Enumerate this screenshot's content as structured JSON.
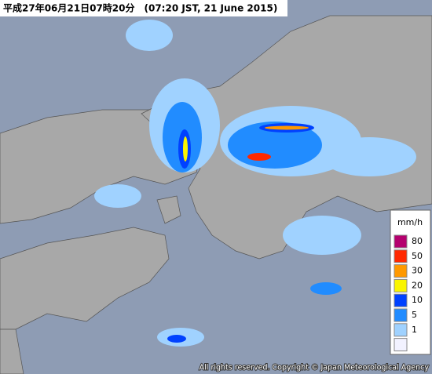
{
  "header": {
    "title": "平成27年06月21日07時20分　(07:20 JST, 21 June 2015)"
  },
  "legend": {
    "unit": "mm/h",
    "items": [
      {
        "value": 80,
        "color": "#b4006e"
      },
      {
        "value": 50,
        "color": "#ff2800"
      },
      {
        "value": 30,
        "color": "#ff9900"
      },
      {
        "value": 20,
        "color": "#faf500"
      },
      {
        "value": 10,
        "color": "#0041ff"
      },
      {
        "value": 5,
        "color": "#218cff"
      },
      {
        "value": 1,
        "color": "#a0d2ff"
      },
      {
        "color": "#f2f2ff"
      }
    ]
  },
  "footer": {
    "copyright": "All rights reserved. Copyright © Japan Meteorological Agency"
  }
}
